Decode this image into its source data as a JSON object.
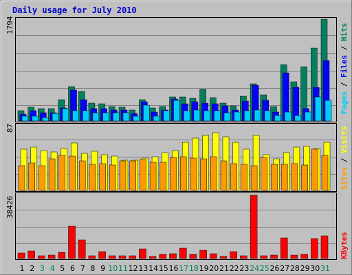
{
  "chart_data": [
    {
      "type": "bar",
      "title": "Daily usage for July 2010",
      "ymax_label": "1794",
      "legend": [
        "Pages",
        "Files",
        "Hits"
      ],
      "legend_separator": " / ",
      "colors": {
        "Pages": "#00ccff",
        "Files": "#0000ff",
        "Hits": "#008060"
      },
      "ylim": [
        0,
        1794
      ],
      "series": [
        {
          "name": "Hits",
          "values": [
            180,
            240,
            220,
            220,
            370,
            610,
            520,
            320,
            300,
            250,
            240,
            190,
            380,
            230,
            260,
            430,
            430,
            400,
            560,
            410,
            320,
            270,
            440,
            650,
            460,
            260,
            1000,
            690,
            960,
            1280,
            1794
          ]
        },
        {
          "name": "Files",
          "values": [
            120,
            180,
            140,
            140,
            230,
            550,
            380,
            220,
            220,
            200,
            200,
            130,
            340,
            160,
            190,
            390,
            300,
            340,
            320,
            300,
            270,
            190,
            350,
            630,
            360,
            160,
            850,
            590,
            220,
            600,
            1070
          ]
        },
        {
          "name": "Pages",
          "values": [
            90,
            90,
            60,
            130,
            220,
            180,
            180,
            150,
            140,
            150,
            150,
            80,
            280,
            80,
            180,
            360,
            180,
            190,
            180,
            180,
            150,
            160,
            180,
            190,
            180,
            100,
            160,
            100,
            160,
            420,
            360
          ]
        }
      ]
    },
    {
      "type": "bar",
      "ymax_label": "87",
      "legend": [
        "Sites",
        "Visits"
      ],
      "legend_separator": " / ",
      "colors": {
        "Sites": "#ff9900",
        "Visits": "#ffff00"
      },
      "ylim": [
        0,
        87
      ],
      "series": [
        {
          "name": "Visits",
          "values": [
            55,
            58,
            53,
            51,
            56,
            63,
            49,
            52,
            48,
            46,
            40,
            40,
            43,
            45,
            50,
            53,
            64,
            70,
            73,
            77,
            71,
            64,
            55,
            73,
            48,
            42,
            50,
            58,
            59,
            56,
            64
          ]
        },
        {
          "name": "Sites",
          "values": [
            33,
            37,
            33,
            42,
            47,
            46,
            39,
            35,
            36,
            34,
            39,
            39,
            41,
            38,
            38,
            44,
            45,
            43,
            42,
            45,
            39,
            36,
            35,
            33,
            44,
            35,
            35,
            36,
            34,
            55,
            47
          ]
        }
      ]
    },
    {
      "type": "bar",
      "ymax_label": "38426",
      "legend": [
        "KBytes"
      ],
      "colors": {
        "KBytes": "#ff0000"
      },
      "ylim": [
        0,
        38426
      ],
      "series": [
        {
          "name": "KBytes",
          "values": [
            3400,
            4400,
            1500,
            2000,
            3800,
            19700,
            11300,
            1500,
            4000,
            1800,
            1500,
            1600,
            5800,
            1400,
            2400,
            2800,
            6100,
            2600,
            5000,
            2900,
            1400,
            4100,
            1600,
            38426,
            1800,
            1900,
            12400,
            2000,
            2600,
            12000,
            13600
          ]
        }
      ]
    }
  ],
  "x_axis": {
    "days": [
      "1",
      "2",
      "3",
      "4",
      "5",
      "6",
      "7",
      "8",
      "9",
      "10",
      "11",
      "12",
      "13",
      "14",
      "15",
      "16",
      "17",
      "18",
      "19",
      "20",
      "21",
      "22",
      "23",
      "24",
      "25",
      "26",
      "27",
      "28",
      "29",
      "30",
      "31"
    ],
    "weekend_days": [
      "3",
      "4",
      "10",
      "11",
      "17",
      "18",
      "24",
      "25",
      "31"
    ],
    "weekday_color": "#000000",
    "weekend_color": "#00805c"
  },
  "colors": {
    "background": "#c0c0c0",
    "panel": "#c0c0c0",
    "title": "#0000cc",
    "gridline": "#808080"
  }
}
